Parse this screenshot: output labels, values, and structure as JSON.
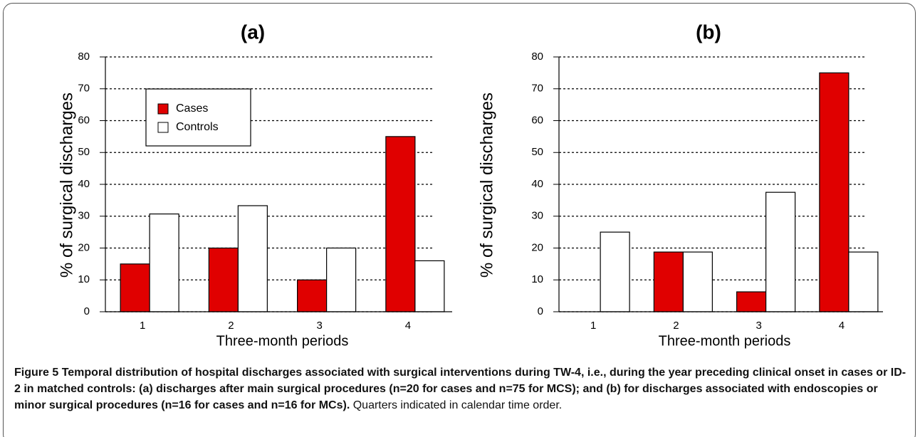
{
  "chart_data": [
    {
      "type": "bar",
      "title": "(a)",
      "ylabel": "% of surgical discharges",
      "xlabel": "Three-month periods",
      "categories": [
        "1",
        "2",
        "3",
        "4"
      ],
      "series": [
        {
          "name": "Cases",
          "color": "#e00000",
          "values": [
            15,
            20,
            10,
            55
          ]
        },
        {
          "name": "Controls",
          "color": "#ffffff",
          "values": [
            30.7,
            33.3,
            20,
            16
          ]
        }
      ],
      "ylim": [
        0,
        80
      ],
      "yticks": [
        0,
        10,
        20,
        30,
        40,
        50,
        60,
        70,
        80
      ],
      "grid": true,
      "legend": "upper left"
    },
    {
      "type": "bar",
      "title": "(b)",
      "ylabel": "% of surgical discharges",
      "xlabel": "Three-month periods",
      "categories": [
        "1",
        "2",
        "3",
        "4"
      ],
      "series": [
        {
          "color": "#e00000",
          "values": [
            0,
            18.75,
            6.25,
            75
          ]
        },
        {
          "color": "#ffffff",
          "values": [
            25,
            18.75,
            37.5,
            18.75
          ]
        }
      ],
      "ylim": [
        0,
        80
      ],
      "yticks": [
        0,
        10,
        20,
        30,
        40,
        50,
        60,
        70,
        80
      ],
      "grid": true
    }
  ],
  "caption": {
    "label": "Figure 5",
    "text": "Temporal distribution of hospital discharges associated with surgical interventions during TW-4, i.e., during the year preceding clinical onset in cases or ID-2 in matched controls: (a) discharges after main surgical procedures (n=20 for cases and n=75 for MCS); and (b) for discharges associated with endoscopies or minor surgical procedures (n=16 for cases and n=16 for MCs).",
    "note": "Quarters indicated in calendar time order."
  }
}
